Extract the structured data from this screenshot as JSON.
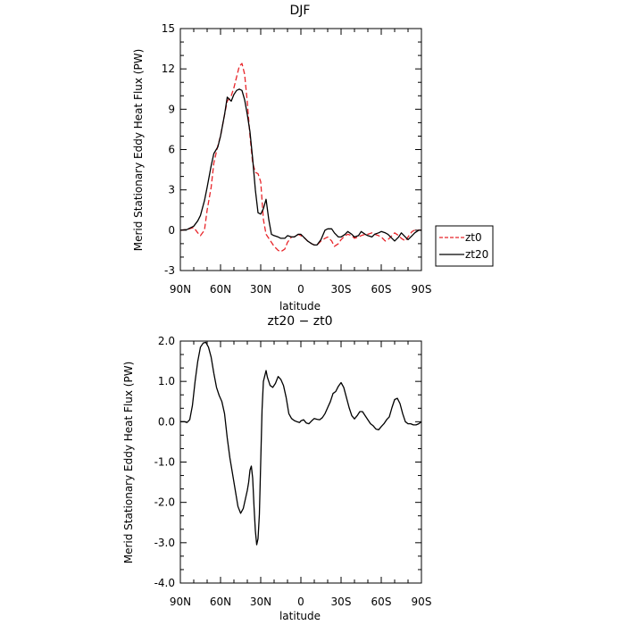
{
  "chart_data": [
    {
      "type": "line",
      "title": "DJF",
      "xlabel": "latitude",
      "ylabel": "Merid Stationary Eddy Heat Flux (PW)",
      "xlim": [
        90,
        -90
      ],
      "ylim": [
        -3,
        15
      ],
      "x_ticks": [
        90,
        60,
        30,
        0,
        -30,
        -60,
        -90
      ],
      "x_tick_labels": [
        "90N",
        "60N",
        "30N",
        "0",
        "30S",
        "60S",
        "90S"
      ],
      "y_ticks": [
        -3,
        0,
        3,
        6,
        9,
        12,
        15
      ],
      "y_tick_labels": [
        "-3",
        "0",
        "3",
        "6",
        "9",
        "12",
        "15"
      ],
      "legend_position": "right",
      "series": [
        {
          "name": "zt0",
          "color": "#e8252a",
          "dash": "dashed",
          "x": [
            90,
            85,
            80,
            77,
            75,
            72,
            70,
            67,
            65,
            62,
            60,
            57,
            55,
            52,
            50,
            48,
            46,
            44,
            42,
            40,
            38,
            36,
            34,
            32,
            30,
            28,
            26,
            24,
            22,
            20,
            17,
            15,
            12,
            10,
            7,
            5,
            2,
            0,
            -3,
            -5,
            -8,
            -10,
            -12,
            -15,
            -18,
            -20,
            -23,
            -25,
            -28,
            -30,
            -33,
            -35,
            -38,
            -40,
            -43,
            -45,
            -48,
            -50,
            -53,
            -55,
            -58,
            -60,
            -63,
            -65,
            -68,
            -70,
            -73,
            -75,
            -78,
            -80,
            -83,
            -85,
            -88,
            -90
          ],
          "y": [
            0.0,
            0.05,
            0.2,
            -0.2,
            -0.4,
            0.0,
            1.5,
            3.2,
            5.0,
            6.3,
            7.0,
            8.6,
            9.6,
            10.0,
            10.6,
            11.4,
            12.2,
            12.4,
            11.6,
            9.5,
            7.0,
            5.0,
            4.3,
            4.2,
            3.6,
            0.8,
            -0.3,
            -0.6,
            -0.9,
            -1.2,
            -1.5,
            -1.6,
            -1.4,
            -0.9,
            -0.5,
            -0.5,
            -0.3,
            -0.4,
            -0.6,
            -0.8,
            -1.0,
            -1.1,
            -1.1,
            -0.8,
            -0.6,
            -0.5,
            -0.8,
            -1.2,
            -1.0,
            -0.7,
            -0.4,
            -0.3,
            -0.4,
            -0.6,
            -0.5,
            -0.4,
            -0.3,
            -0.3,
            -0.2,
            -0.3,
            -0.4,
            -0.5,
            -0.8,
            -0.7,
            -0.4,
            -0.2,
            -0.4,
            -0.6,
            -0.8,
            -0.5,
            -0.1,
            0.0,
            0.0,
            0.0
          ]
        },
        {
          "name": "zt20",
          "color": "#000000",
          "dash": "solid",
          "x": [
            90,
            85,
            80,
            77,
            75,
            72,
            70,
            67,
            65,
            62,
            60,
            57,
            55,
            52,
            50,
            48,
            46,
            44,
            42,
            40,
            38,
            36,
            34,
            32,
            30,
            28,
            26,
            24,
            22,
            20,
            17,
            15,
            12,
            10,
            7,
            5,
            2,
            0,
            -3,
            -5,
            -8,
            -10,
            -12,
            -15,
            -18,
            -20,
            -23,
            -25,
            -28,
            -30,
            -33,
            -35,
            -38,
            -40,
            -43,
            -45,
            -48,
            -50,
            -53,
            -55,
            -58,
            -60,
            -63,
            -65,
            -68,
            -70,
            -73,
            -75,
            -78,
            -80,
            -83,
            -85,
            -88,
            -90
          ],
          "y": [
            0.0,
            0.05,
            0.3,
            0.7,
            1.1,
            2.2,
            3.2,
            4.8,
            5.7,
            6.2,
            7.0,
            8.6,
            9.9,
            9.6,
            10.1,
            10.4,
            10.5,
            10.4,
            9.7,
            8.6,
            7.3,
            5.3,
            3.0,
            1.3,
            1.2,
            1.6,
            2.3,
            0.8,
            -0.3,
            -0.4,
            -0.5,
            -0.6,
            -0.6,
            -0.4,
            -0.5,
            -0.5,
            -0.3,
            -0.3,
            -0.6,
            -0.8,
            -1.0,
            -1.1,
            -1.1,
            -0.7,
            0.0,
            0.1,
            0.1,
            -0.2,
            -0.5,
            -0.5,
            -0.3,
            -0.1,
            -0.3,
            -0.5,
            -0.4,
            -0.1,
            -0.3,
            -0.4,
            -0.5,
            -0.3,
            -0.2,
            -0.1,
            -0.2,
            -0.3,
            -0.6,
            -0.8,
            -0.5,
            -0.2,
            -0.5,
            -0.7,
            -0.4,
            -0.2,
            0.0,
            0.0
          ]
        }
      ]
    },
    {
      "type": "line",
      "title": "zt20 − zt0",
      "xlabel": "latitude",
      "ylabel": "Merid Stationary Eddy Heat Flux (PW)",
      "xlim": [
        90,
        -90
      ],
      "ylim": [
        -4,
        2
      ],
      "x_ticks": [
        90,
        60,
        30,
        0,
        -30,
        -60,
        -90
      ],
      "x_tick_labels": [
        "90N",
        "60N",
        "30N",
        "0",
        "30S",
        "60S",
        "90S"
      ],
      "y_ticks": [
        -4,
        -3,
        -2,
        -1,
        0,
        1,
        2
      ],
      "y_tick_labels": [
        "-4.0",
        "-3.0",
        "-2.0",
        "-1.0",
        "0.0",
        "1.0",
        "2.0"
      ],
      "series": [
        {
          "color": "#000000",
          "dash": "solid",
          "x": [
            90,
            87,
            85,
            83,
            81,
            79,
            77,
            75,
            73,
            71,
            69,
            67,
            65,
            63,
            61,
            59,
            57,
            55,
            53,
            51,
            49,
            47,
            45,
            43,
            41,
            40,
            39,
            38,
            37,
            36,
            35,
            34,
            33,
            32,
            31,
            30,
            29,
            28,
            26,
            25,
            23,
            21,
            19,
            17,
            15,
            13,
            11,
            9,
            7,
            5,
            3,
            1,
            0,
            -2,
            -4,
            -6,
            -8,
            -10,
            -12,
            -14,
            -16,
            -18,
            -20,
            -22,
            -24,
            -26,
            -28,
            -30,
            -32,
            -34,
            -36,
            -38,
            -40,
            -42,
            -44,
            -46,
            -48,
            -50,
            -52,
            -54,
            -56,
            -58,
            -60,
            -62,
            -64,
            -66,
            -68,
            -70,
            -72,
            -74,
            -76,
            -78,
            -80,
            -82,
            -84,
            -86,
            -88,
            -90
          ],
          "y": [
            0.0,
            0.0,
            -0.02,
            0.05,
            0.4,
            1.0,
            1.5,
            1.85,
            1.95,
            1.97,
            1.85,
            1.6,
            1.2,
            0.85,
            0.65,
            0.5,
            0.2,
            -0.4,
            -0.9,
            -1.3,
            -1.7,
            -2.1,
            -2.27,
            -2.15,
            -1.85,
            -1.7,
            -1.5,
            -1.2,
            -1.1,
            -1.4,
            -2.1,
            -2.7,
            -3.05,
            -2.9,
            -2.3,
            -1.0,
            0.3,
            1.0,
            1.27,
            1.1,
            0.9,
            0.85,
            0.95,
            1.12,
            1.05,
            0.9,
            0.6,
            0.2,
            0.08,
            0.03,
            0.0,
            -0.02,
            0.02,
            0.05,
            -0.03,
            -0.05,
            0.02,
            0.08,
            0.06,
            0.05,
            0.1,
            0.2,
            0.35,
            0.5,
            0.7,
            0.75,
            0.88,
            0.97,
            0.85,
            0.6,
            0.35,
            0.15,
            0.07,
            0.15,
            0.25,
            0.25,
            0.15,
            0.05,
            -0.05,
            -0.1,
            -0.18,
            -0.2,
            -0.12,
            -0.05,
            0.05,
            0.12,
            0.35,
            0.55,
            0.58,
            0.45,
            0.2,
            0.0,
            -0.05,
            -0.05,
            -0.08,
            -0.08,
            -0.05,
            0.0
          ]
        }
      ]
    }
  ]
}
